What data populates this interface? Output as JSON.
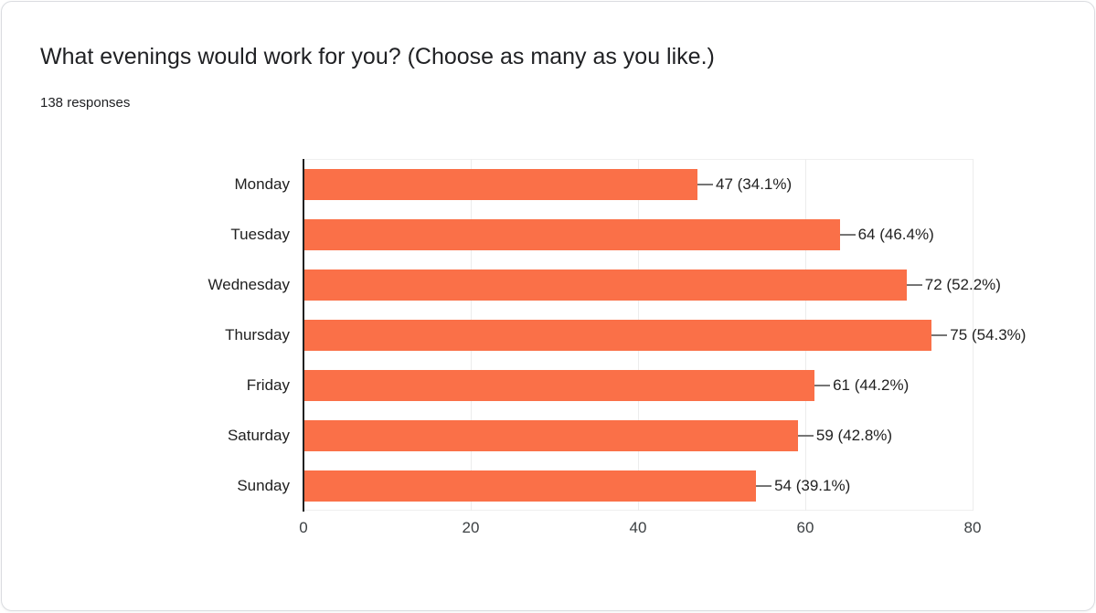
{
  "card": {
    "title": "What evenings would work for you? (Choose as many as you like.)",
    "subtitle": "138 responses"
  },
  "chart_data": {
    "type": "bar",
    "orientation": "horizontal",
    "title": "What evenings would work for you? (Choose as many as you like.)",
    "subtitle": "138 responses",
    "total_responses": 138,
    "categories": [
      "Monday",
      "Tuesday",
      "Wednesday",
      "Thursday",
      "Friday",
      "Saturday",
      "Sunday"
    ],
    "values": [
      47,
      64,
      72,
      75,
      61,
      59,
      54
    ],
    "percentages": [
      34.1,
      46.4,
      52.2,
      54.3,
      44.2,
      42.8,
      39.1
    ],
    "value_labels": [
      "47 (34.1%)",
      "64 (46.4%)",
      "72 (52.2%)",
      "75 (54.3%)",
      "61 (44.2%)",
      "59 (42.8%)",
      "54 (39.1%)"
    ],
    "xlim": [
      0,
      80
    ],
    "x_ticks": [
      0,
      20,
      40,
      60,
      80
    ],
    "grid": true,
    "legend": "none",
    "bar_color": "#FA7048",
    "gridline_color": "#ececec",
    "axis_color": "#212121",
    "connector_color": "#757575",
    "label_color": "#212121",
    "tick_label_color": "#3c4043"
  }
}
